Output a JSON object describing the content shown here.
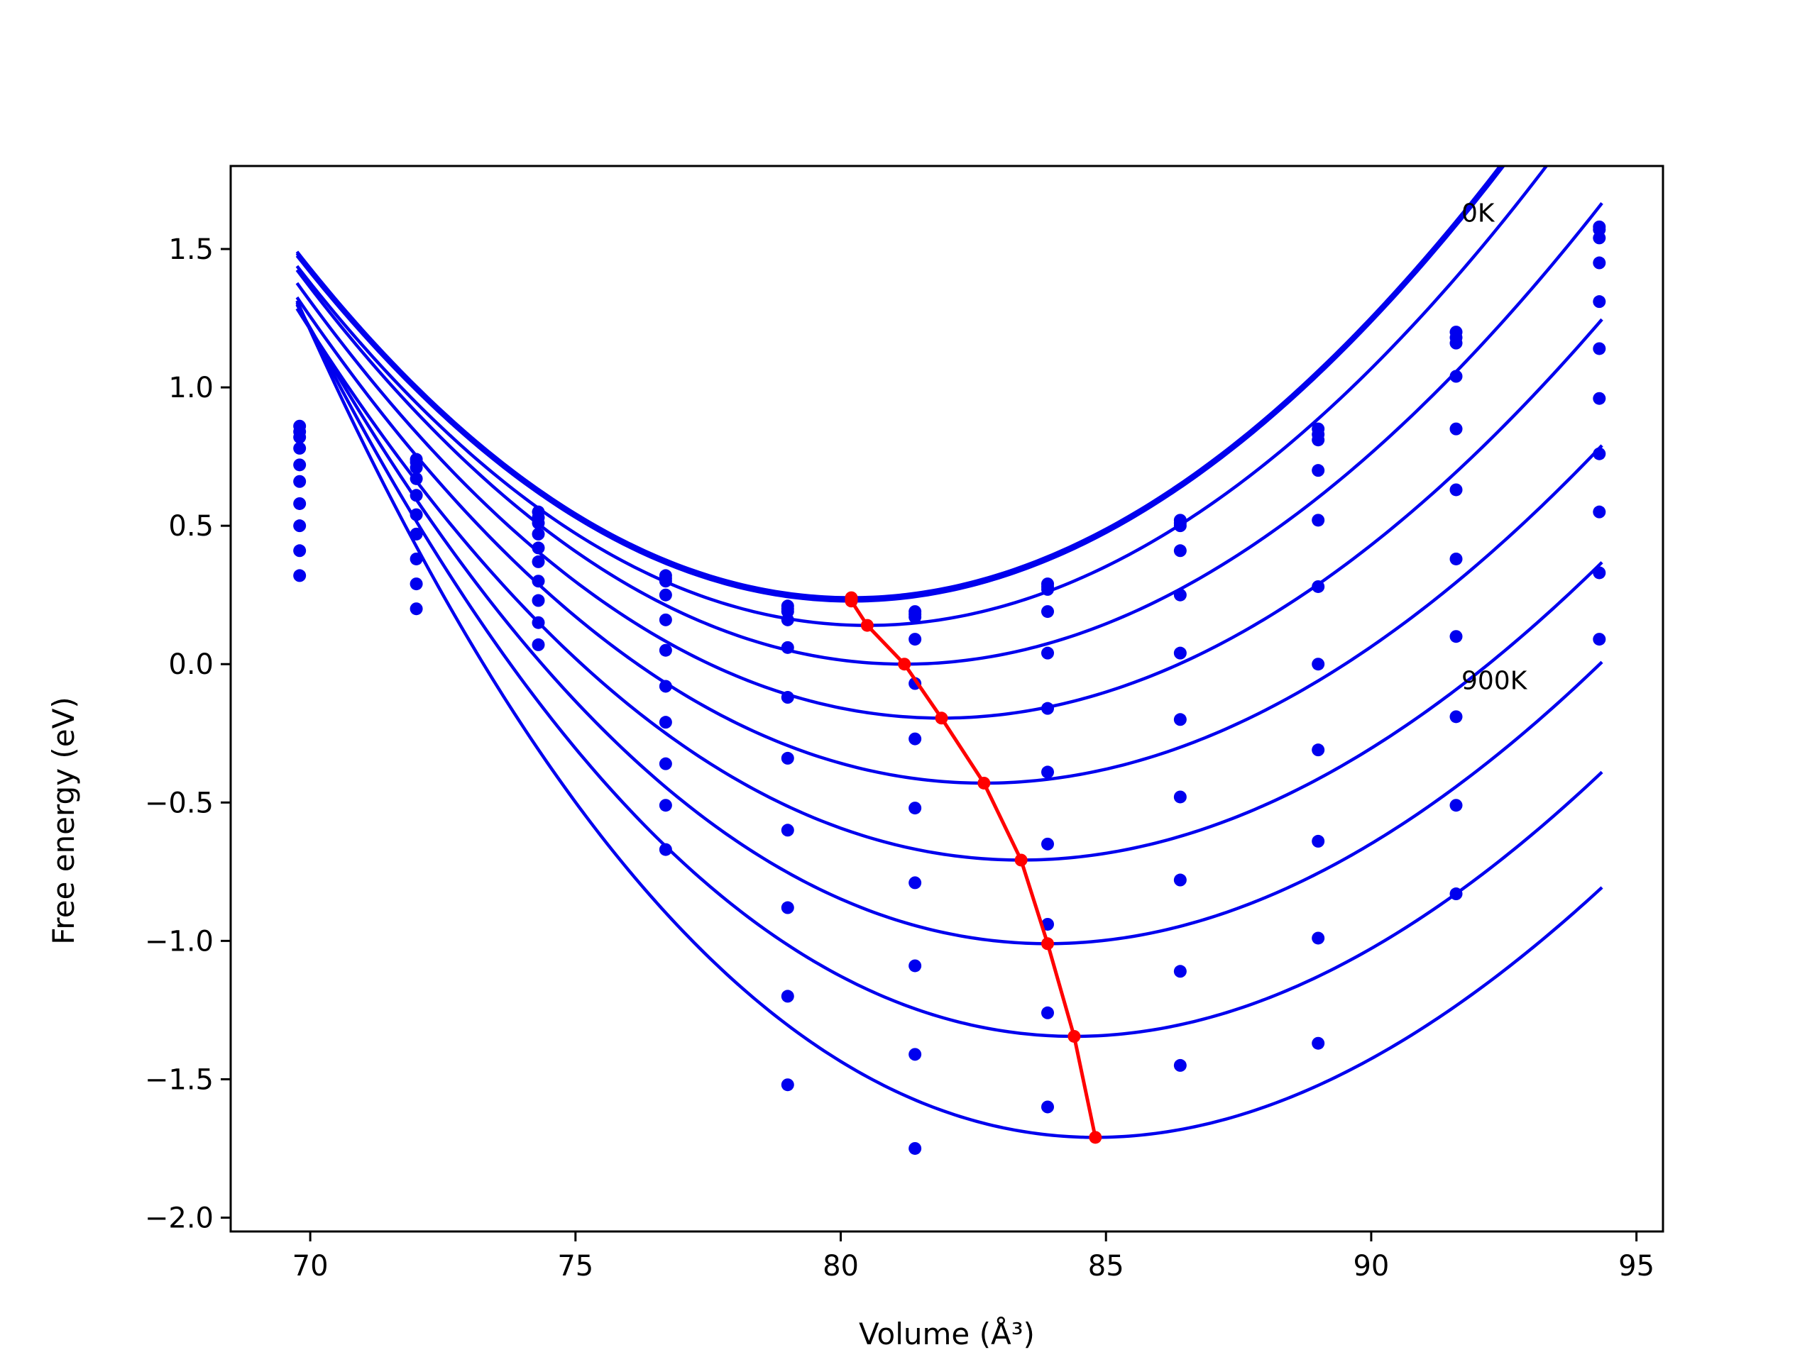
{
  "chart_data": {
    "type": "line",
    "xlabel": "Volume (Å³)",
    "ylabel": "Free energy (eV)",
    "xlim": [
      68.5,
      95.5
    ],
    "ylim": [
      -2.05,
      1.8
    ],
    "xticks": [
      70,
      75,
      80,
      85,
      90,
      95
    ],
    "yticks": [
      -2.0,
      -1.5,
      -1.0,
      -0.5,
      0.0,
      0.5,
      1.0,
      1.5
    ],
    "ytick_labels": [
      "−2.0",
      "−1.5",
      "−1.0",
      "−0.5",
      "0.0",
      "0.5",
      "1.0",
      "1.5"
    ],
    "grid": false,
    "annotations": [
      {
        "text": "0K",
        "x": 91.7,
        "y": 1.63
      },
      {
        "text": "900K",
        "x": 91.7,
        "y": -0.06
      }
    ],
    "volumes": [
      69.8,
      72.0,
      74.3,
      76.7,
      79.0,
      81.4,
      83.9,
      86.4,
      89.0,
      91.6,
      94.3
    ],
    "fit_curves": [
      {
        "label": "0K",
        "V0": 80.2,
        "E0": 0.24,
        "k": 0.01098,
        "c": -4.5e-05
      },
      {
        "V0": 80.2,
        "E0": 0.235,
        "k": 0.010968,
        "c": -4.5e-05
      },
      {
        "V0": 80.2,
        "E0": 0.228,
        "k": 0.010957,
        "c": -4.5e-05
      },
      {
        "V0": 80.5,
        "E0": 0.14,
        "k": 0.01073,
        "c": -4.7e-05
      },
      {
        "V0": 81.2,
        "E0": 0.0,
        "k": 0.01029,
        "c": -5e-05
      },
      {
        "V0": 81.9,
        "E0": -0.195,
        "k": 0.00998,
        "c": -5.5e-05
      },
      {
        "V0": 82.7,
        "E0": -0.43,
        "k": 0.00969,
        "c": -6e-05
      },
      {
        "V0": 83.4,
        "E0": -0.708,
        "k": 0.00974,
        "c": -7e-05
      },
      {
        "V0": 83.9,
        "E0": -1.01,
        "k": 0.01026,
        "c": -9e-05
      },
      {
        "V0": 84.4,
        "E0": -1.345,
        "k": 0.01074,
        "c": -0.00011
      },
      {
        "label": "900K",
        "V0": 84.8,
        "E0": -1.71,
        "k": 0.01124,
        "c": -0.00014
      }
    ],
    "scatter_series": [
      {
        "values": [
          0.86,
          0.74,
          0.55,
          0.32,
          0.21,
          0.19,
          0.29,
          0.52,
          0.85,
          1.2,
          1.58
        ]
      },
      {
        "values": [
          0.84,
          0.73,
          0.53,
          0.31,
          0.2,
          0.18,
          0.28,
          0.51,
          0.83,
          1.18,
          1.57
        ]
      },
      {
        "values": [
          0.82,
          0.71,
          0.51,
          0.3,
          0.19,
          0.17,
          0.27,
          0.5,
          0.81,
          1.16,
          1.54
        ]
      },
      {
        "values": [
          0.78,
          0.67,
          0.47,
          0.25,
          0.16,
          0.09,
          0.19,
          0.41,
          0.7,
          1.04,
          1.45
        ]
      },
      {
        "values": [
          0.72,
          0.61,
          0.42,
          0.16,
          0.06,
          -0.07,
          0.04,
          0.25,
          0.52,
          0.85,
          1.31
        ]
      },
      {
        "values": [
          0.66,
          0.54,
          0.37,
          0.05,
          -0.12,
          -0.27,
          -0.16,
          0.04,
          0.28,
          0.63,
          1.14
        ]
      },
      {
        "values": [
          0.58,
          0.47,
          0.3,
          -0.08,
          -0.34,
          -0.52,
          -0.39,
          -0.2,
          0.0,
          0.38,
          0.96
        ]
      },
      {
        "values": [
          0.5,
          0.38,
          0.23,
          -0.21,
          -0.6,
          -0.79,
          -0.65,
          -0.48,
          -0.31,
          0.1,
          0.76
        ]
      },
      {
        "values": [
          0.41,
          0.29,
          0.15,
          -0.36,
          -0.88,
          -1.09,
          -0.94,
          -0.78,
          -0.64,
          -0.19,
          0.55
        ]
      },
      {
        "values": [
          0.32,
          0.2,
          0.07,
          -0.51,
          -1.2,
          -1.41,
          -1.26,
          -1.11,
          -0.99,
          -0.51,
          0.33
        ]
      },
      {
        "values": [
          null,
          null,
          null,
          -0.67,
          -1.52,
          -1.75,
          -1.6,
          -1.45,
          -1.37,
          -0.83,
          0.09
        ]
      }
    ],
    "minima_path": {
      "x": [
        80.2,
        80.2,
        80.2,
        80.5,
        81.2,
        81.9,
        82.7,
        83.4,
        83.9,
        84.4,
        84.8
      ],
      "y": [
        0.24,
        0.235,
        0.228,
        0.14,
        0.0,
        -0.195,
        -0.43,
        -0.708,
        -1.01,
        -1.345,
        -1.71
      ]
    },
    "colors": {
      "fit": "#0000ee",
      "points": "#0000ee",
      "minima": "#ff0000",
      "axes": "#000000"
    }
  }
}
